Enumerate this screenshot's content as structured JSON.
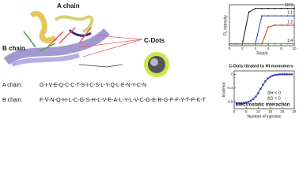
{
  "figure": {
    "labels": {
      "a_chain": "A chain",
      "b_chain": "B chain",
      "cdots": "C-Dots"
    },
    "sequences": [
      {
        "label": "A chain:",
        "sequence": "G-I-V-E-Q-C-C-T-S-I-C-S-L-Y-Q-L-E-N-Y-C-N"
      },
      {
        "label": "B chain:",
        "sequence": "F-V-N-Q-H-L-C-G-S-H-L-V-E-A-L-Y-L-V-C-G-E-R-G-F-F-Y-T-P-K-T"
      }
    ]
  },
  "chart_data": [
    {
      "type": "line",
      "xlabel": "Time/h",
      "ylabel": "FL Intensity",
      "x": [
        0,
        1,
        2,
        3,
        4,
        5,
        6,
        7,
        8,
        9,
        10
      ],
      "xlim": [
        0,
        10
      ],
      "xticks": [
        0,
        2,
        4,
        6,
        8,
        10
      ],
      "ylim": [
        0,
        1.1
      ],
      "series": [
        {
          "name": "10:3",
          "color": "#111111",
          "values": [
            0.05,
            0.05,
            0.05,
            0.9,
            1,
            1,
            1,
            1,
            1,
            1,
            1
          ]
        },
        {
          "name": "1:1",
          "color": "#2a3fd6",
          "values": [
            0.05,
            0.05,
            0.05,
            0.05,
            0.05,
            0.8,
            0.8,
            0.8,
            0.8,
            0.8,
            0.8
          ]
        },
        {
          "name": "1:2",
          "color": "#d62a2a",
          "values": [
            0.05,
            0.05,
            0.05,
            0.05,
            0.05,
            0.05,
            0.5,
            0.55,
            0.55,
            0.55,
            0.55
          ]
        },
        {
          "name": "1:4",
          "color": "#22b022",
          "values": [
            0.05,
            0.05,
            0.05,
            0.05,
            0.05,
            0.05,
            0.05,
            0.05,
            0.05,
            0.05,
            0.05
          ]
        }
      ]
    },
    {
      "type": "scatter",
      "title": "C-Dots titrated to HI monomers",
      "xlabel": "Number of injection",
      "ylabel": "kcal/mol",
      "annotations": [
        "ΔH < 0",
        "ΔS > 0",
        "Electrostatic interaction"
      ],
      "x": [
        1,
        2,
        3,
        4,
        5,
        6,
        7,
        8,
        9,
        10,
        11,
        12,
        13,
        14,
        15,
        16,
        17,
        18,
        19,
        20,
        21,
        22,
        23,
        24
      ],
      "values": [
        -0.85,
        -0.85,
        -0.84,
        -0.83,
        -0.82,
        -0.8,
        -0.77,
        -0.72,
        -0.65,
        -0.55,
        -0.42,
        -0.3,
        -0.2,
        -0.12,
        -0.07,
        -0.04,
        -0.02,
        -0.01,
        0,
        0,
        0,
        0,
        0,
        0
      ],
      "fit_values": [
        -0.86,
        -0.86,
        -0.85,
        -0.84,
        -0.82,
        -0.8,
        -0.76,
        -0.71,
        -0.64,
        -0.54,
        -0.43,
        -0.31,
        -0.21,
        -0.13,
        -0.08,
        -0.04,
        -0.02,
        -0.01,
        0,
        0,
        0,
        0,
        0,
        0
      ],
      "color": "#2a3fd6",
      "fit_color": "#111111",
      "xlim": [
        0,
        25
      ],
      "xticks": [
        0,
        5,
        10,
        15,
        20,
        25
      ],
      "ylim": [
        -1,
        0.1
      ],
      "yticks": [
        -0.8,
        -0.4,
        0
      ]
    }
  ]
}
